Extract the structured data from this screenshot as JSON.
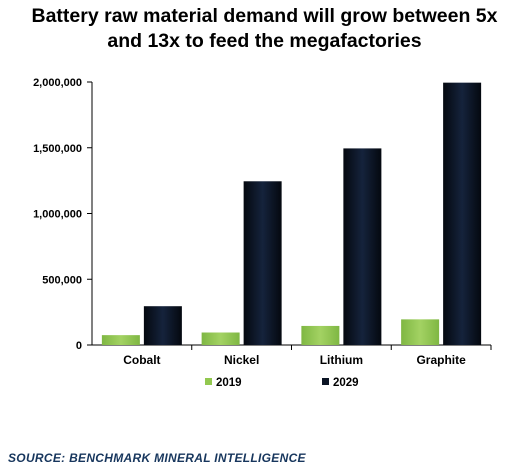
{
  "title_line1": "Battery raw material demand will grow between 5x",
  "title_line2": "and 13x to feed the megafactories",
  "source": "SOURCE: BENCHMARK MINERAL INTELLIGENCE",
  "colors": {
    "series_2019": "#92c84f",
    "series_2029": "#0b1424",
    "source_text": "#17365d",
    "axis": "#000000"
  },
  "chart_data": {
    "type": "bar",
    "title": "Battery raw material demand will grow between 5x and 13x to feed the megafactories",
    "categories": [
      "Cobalt",
      "Nickel",
      "Lithium",
      "Graphite"
    ],
    "series": [
      {
        "name": "2019",
        "values": [
          75000,
          95000,
          145000,
          195000
        ]
      },
      {
        "name": "2029",
        "values": [
          295000,
          1245000,
          1495000,
          1995000
        ]
      }
    ],
    "ylim": [
      0,
      2000000
    ],
    "yticks": [
      0,
      500000,
      1000000,
      1500000,
      2000000
    ],
    "ytick_labels": [
      "0",
      "500,000",
      "1,000,000",
      "1,500,000",
      "2,000,000"
    ],
    "xlabel": "",
    "ylabel": "",
    "grid": false,
    "legend_position": "bottom"
  }
}
